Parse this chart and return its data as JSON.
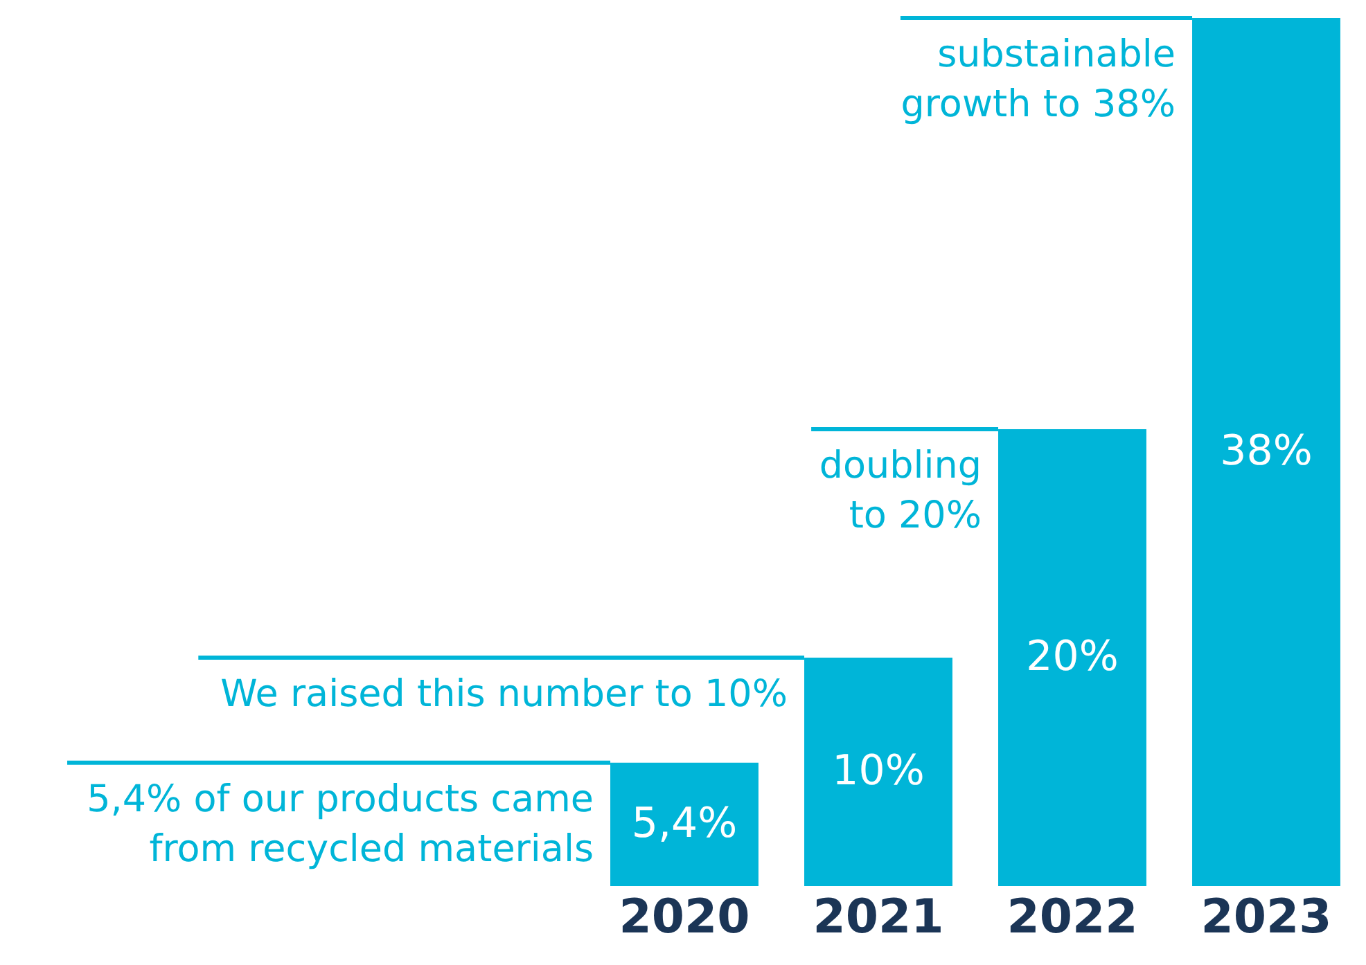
{
  "chart_data": {
    "type": "bar",
    "categories": [
      "2020",
      "2021",
      "2022",
      "2023"
    ],
    "values": [
      5.4,
      10,
      20,
      38
    ],
    "color": "#00b5d8",
    "value_labels": [
      "5,4%",
      "10%",
      "20%",
      "38%"
    ],
    "annotations": [
      {
        "text": "5,4% of our products came\nfrom recycled materials",
        "x": "2020",
        "y": 5.4
      },
      {
        "text": "We raised this number to 10%",
        "x": "2021",
        "y": 10
      },
      {
        "text": "doubling\nto 20%",
        "x": "2022",
        "y": 20
      },
      {
        "text": "substainable\ngrowth to 38%",
        "x": "2023",
        "y": 38
      }
    ],
    "grid": false
  }
}
